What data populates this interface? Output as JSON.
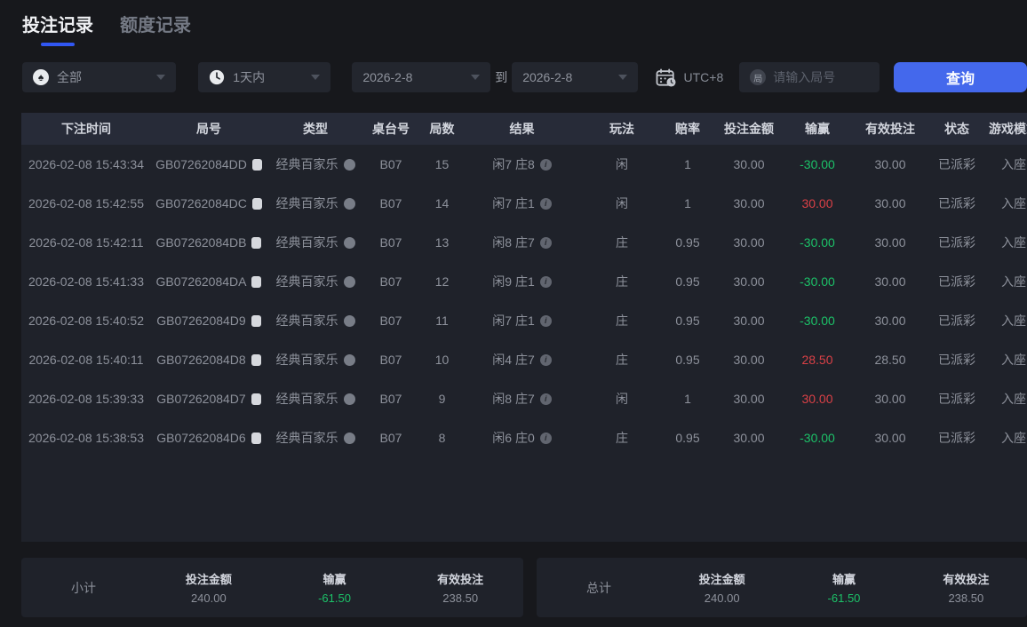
{
  "tabs": {
    "bet_records": "投注记录",
    "quota_records": "额度记录"
  },
  "filters": {
    "game_type_value": "全部",
    "game_type_icon_char": "♠",
    "time_range_value": "1天内",
    "date_from": "2026-2-8",
    "to_label": "到",
    "date_to": "2026-2-8",
    "timezone_label": "UTC+8",
    "game_no_icon_char": "局",
    "game_no_placeholder": "请输入局号",
    "query_button": "查询"
  },
  "table": {
    "headers": [
      "下注时间",
      "局号",
      "类型",
      "桌台号",
      "局数",
      "结果",
      "玩法",
      "赔率",
      "投注金额",
      "输赢",
      "有效投注",
      "状态",
      "游戏模式"
    ],
    "rows": [
      {
        "time": "2026-02-08 15:43:34",
        "game_id": "GB07262084DD",
        "type": "经典百家乐",
        "table_no": "B07",
        "round": "15",
        "result": "闲7 庄8",
        "play": "闲",
        "odds": "1",
        "amount": "30.00",
        "win_loss": "-30.00",
        "valid_bet": "30.00",
        "status": "已派彩",
        "mode": "入座"
      },
      {
        "time": "2026-02-08 15:42:55",
        "game_id": "GB07262084DC",
        "type": "经典百家乐",
        "table_no": "B07",
        "round": "14",
        "result": "闲7 庄1",
        "play": "闲",
        "odds": "1",
        "amount": "30.00",
        "win_loss": "30.00",
        "valid_bet": "30.00",
        "status": "已派彩",
        "mode": "入座"
      },
      {
        "time": "2026-02-08 15:42:11",
        "game_id": "GB07262084DB",
        "type": "经典百家乐",
        "table_no": "B07",
        "round": "13",
        "result": "闲8 庄7",
        "play": "庄",
        "odds": "0.95",
        "amount": "30.00",
        "win_loss": "-30.00",
        "valid_bet": "30.00",
        "status": "已派彩",
        "mode": "入座"
      },
      {
        "time": "2026-02-08 15:41:33",
        "game_id": "GB07262084DA",
        "type": "经典百家乐",
        "table_no": "B07",
        "round": "12",
        "result": "闲9 庄1",
        "play": "庄",
        "odds": "0.95",
        "amount": "30.00",
        "win_loss": "-30.00",
        "valid_bet": "30.00",
        "status": "已派彩",
        "mode": "入座"
      },
      {
        "time": "2026-02-08 15:40:52",
        "game_id": "GB07262084D9",
        "type": "经典百家乐",
        "table_no": "B07",
        "round": "11",
        "result": "闲7 庄1",
        "play": "庄",
        "odds": "0.95",
        "amount": "30.00",
        "win_loss": "-30.00",
        "valid_bet": "30.00",
        "status": "已派彩",
        "mode": "入座"
      },
      {
        "time": "2026-02-08 15:40:11",
        "game_id": "GB07262084D8",
        "type": "经典百家乐",
        "table_no": "B07",
        "round": "10",
        "result": "闲4 庄7",
        "play": "庄",
        "odds": "0.95",
        "amount": "30.00",
        "win_loss": "28.50",
        "valid_bet": "28.50",
        "status": "已派彩",
        "mode": "入座"
      },
      {
        "time": "2026-02-08 15:39:33",
        "game_id": "GB07262084D7",
        "type": "经典百家乐",
        "table_no": "B07",
        "round": "9",
        "result": "闲8 庄7",
        "play": "闲",
        "odds": "1",
        "amount": "30.00",
        "win_loss": "30.00",
        "valid_bet": "30.00",
        "status": "已派彩",
        "mode": "入座"
      },
      {
        "time": "2026-02-08 15:38:53",
        "game_id": "GB07262084D6",
        "type": "经典百家乐",
        "table_no": "B07",
        "round": "8",
        "result": "闲6 庄0",
        "play": "庄",
        "odds": "0.95",
        "amount": "30.00",
        "win_loss": "-30.00",
        "valid_bet": "30.00",
        "status": "已派彩",
        "mode": "入座"
      }
    ]
  },
  "summary": {
    "subtotal": {
      "label": "小计",
      "amount_label": "投注金额",
      "amount": "240.00",
      "win_loss_label": "输赢",
      "win_loss": "-61.50",
      "valid_label": "有效投注",
      "valid": "238.50"
    },
    "total": {
      "label": "总计",
      "amount_label": "投注金额",
      "amount": "240.00",
      "win_loss_label": "输赢",
      "win_loss": "-61.50",
      "valid_label": "有效投注",
      "valid": "238.50"
    }
  },
  "colors": {
    "accent_blue": "#4468ec",
    "win_red": "#d94046",
    "loss_green": "#1cc168",
    "table_header_bg": "#272b38",
    "panel_bg": "#1f222a",
    "page_bg": "#17181c"
  }
}
